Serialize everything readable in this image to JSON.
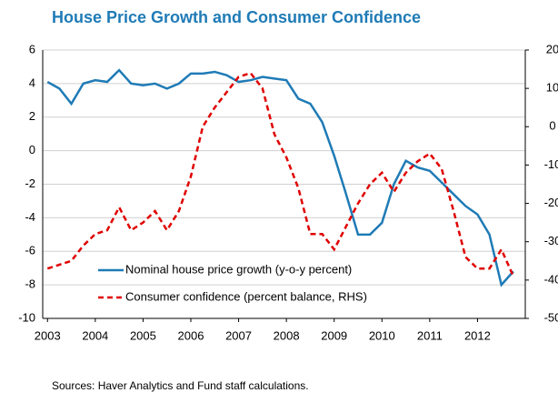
{
  "chart_data": {
    "type": "line",
    "title": "House Price Growth and Consumer Confidence",
    "source": "Sources: Haver Analytics and Fund staff calculations.",
    "x": [
      2003,
      2003.25,
      2003.5,
      2003.75,
      2004,
      2004.25,
      2004.5,
      2004.75,
      2005,
      2005.25,
      2005.5,
      2005.75,
      2006,
      2006.25,
      2006.5,
      2006.75,
      2007,
      2007.25,
      2007.5,
      2007.75,
      2008,
      2008.25,
      2008.5,
      2008.75,
      2009,
      2009.25,
      2009.5,
      2009.75,
      2010,
      2010.25,
      2010.5,
      2010.75,
      2011,
      2011.25,
      2011.5,
      2011.75,
      2012,
      2012.25,
      2012.5,
      2012.75
    ],
    "series": [
      {
        "name": "Nominal house price growth (y-o-y percent)",
        "color": "#1f7bb6",
        "dash": false,
        "values": [
          4.1,
          3.7,
          2.8,
          4.0,
          4.2,
          4.1,
          4.8,
          4.0,
          3.9,
          4.0,
          3.7,
          4.0,
          4.6,
          4.6,
          4.7,
          4.5,
          4.1,
          4.2,
          4.4,
          4.3,
          4.2,
          3.1,
          2.8,
          1.7,
          -0.3,
          -2.6,
          -5.0,
          -5.0,
          -4.3,
          -2.0,
          -0.6,
          -1.0,
          -1.2,
          -1.9,
          -2.6,
          -3.3,
          -3.8,
          -5.0,
          -8.0,
          -7.2
        ]
      },
      {
        "name": "Consumer confidence (percent balance, RHS)",
        "color": "#e00000",
        "dash": true,
        "axis": "y2",
        "values": [
          -37,
          -36,
          -35,
          -31,
          -28,
          -27,
          -21,
          -27,
          -25,
          -22,
          -27,
          -22,
          -13,
          0,
          5,
          9,
          13,
          14,
          10,
          -2,
          -8,
          -16,
          -28,
          -28,
          -32,
          -26,
          -20,
          -15,
          -12,
          -17,
          -12,
          -9,
          -7,
          -11,
          -22,
          -34,
          -37,
          -37,
          -32,
          -39
        ]
      }
    ],
    "xlim": [
      2002.9,
      2013.0
    ],
    "xticks": [
      2003,
      2004,
      2005,
      2006,
      2007,
      2008,
      2009,
      2010,
      2011,
      2012
    ],
    "ylim": [
      -10,
      6
    ],
    "yticks": [
      -10,
      -8,
      -6,
      -4,
      -2,
      0,
      2,
      4,
      6
    ],
    "y2lim": [
      -50,
      20
    ],
    "y2ticks": [
      -50,
      -40,
      -30,
      -20,
      -10,
      0,
      10,
      20
    ],
    "grid": true
  }
}
